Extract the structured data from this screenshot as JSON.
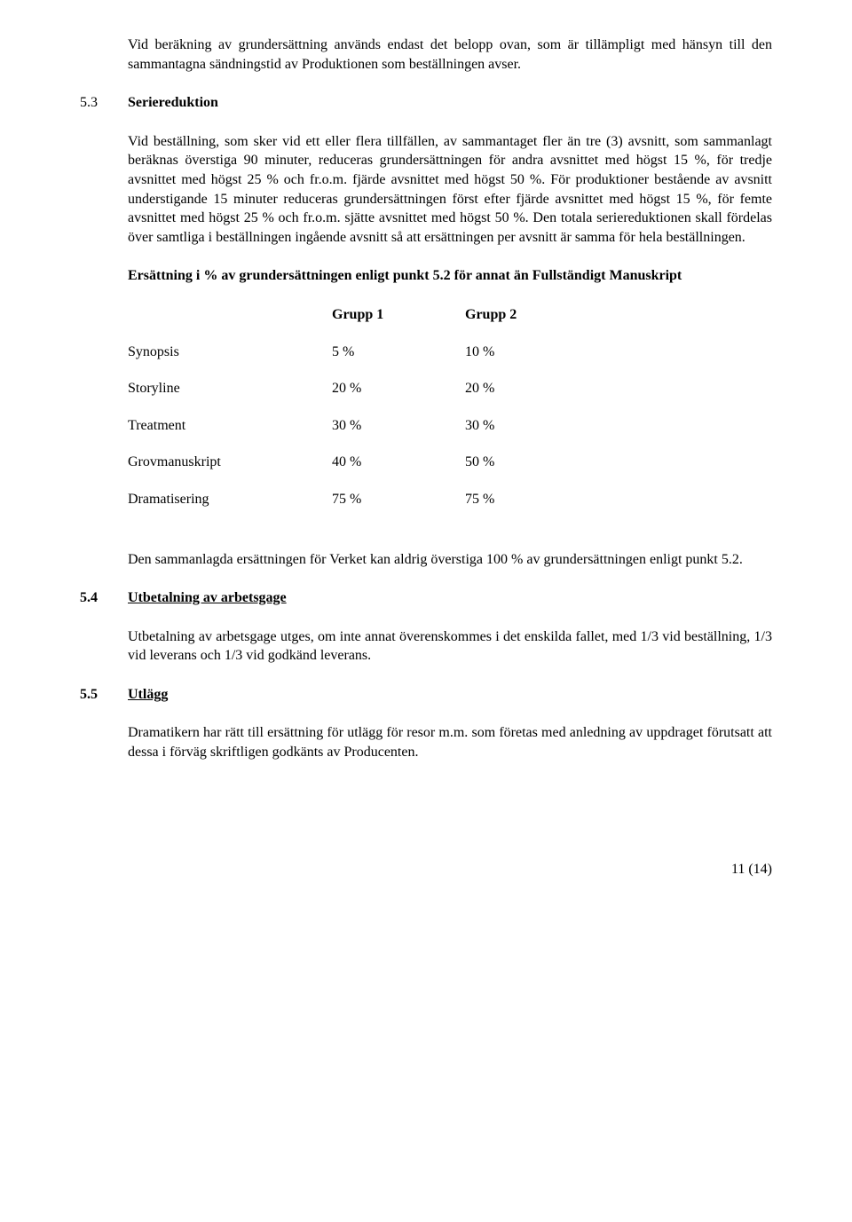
{
  "paragraphs": {
    "intro": "Vid beräkning av grundersättning används endast det belopp ovan, som är tillämpligt med hänsyn till den sammantagna sändningstid av Produktionen som beställningen avser.",
    "s53_body": "Vid beställning, som sker vid ett eller flera tillfällen, av sammantaget fler än tre (3) avsnitt, som sammanlagt beräknas överstiga 90 minuter, reduceras grundersättningen för andra avsnittet med högst 15 %, för tredje avsnittet med högst 25 % och fr.o.m. fjärde avsnittet med högst 50 %. För produktioner bestående av avsnitt understigande 15 minuter reduceras grundersättningen först efter fjärde avsnittet med högst 15 %, för femte avsnittet med högst 25 % och fr.o.m. sjätte avsnittet med högst 50 %. Den totala seriereduktionen skall fördelas över samtliga i beställningen ingående avsnitt så att ersättningen per avsnitt är samma för hela beställningen.",
    "table_intro": "Ersättning i % av grundersättningen enligt punkt 5.2 för annat än Fullständigt Manuskript",
    "after_table": "Den sammanlagda ersättningen för Verket kan aldrig överstiga 100 % av grundersättningen enligt punkt 5.2.",
    "s54_body": "Utbetalning av arbetsgage utges, om inte annat överenskommes i det enskilda fallet, med 1/3 vid beställning, 1/3 vid leverans och 1/3 vid godkänd leverans.",
    "s55_body": "Dramatikern har rätt till ersättning för utlägg för resor m.m. som företas med anledning av uppdraget förutsatt att dessa i förväg skriftligen godkänts av Producenten."
  },
  "sections": {
    "s53_num": "5.3",
    "s53_title": "Seriereduktion",
    "s54_num": "5.4",
    "s54_title": "Utbetalning av arbetsgage",
    "s55_num": "5.5",
    "s55_title": "Utlägg"
  },
  "table": {
    "headers": {
      "g1": "Grupp 1",
      "g2": "Grupp 2"
    },
    "rows": [
      {
        "label": "Synopsis",
        "g1": "5 %",
        "g2": "10 %"
      },
      {
        "label": "Storyline",
        "g1": "20 %",
        "g2": "20 %"
      },
      {
        "label": "Treatment",
        "g1": "30 %",
        "g2": "30 %"
      },
      {
        "label": "Grovmanuskript",
        "g1": "40 %",
        "g2": "50 %"
      },
      {
        "label": "Dramatisering",
        "g1": "75 %",
        "g2": "75 %"
      }
    ]
  },
  "footer": "11 (14)"
}
